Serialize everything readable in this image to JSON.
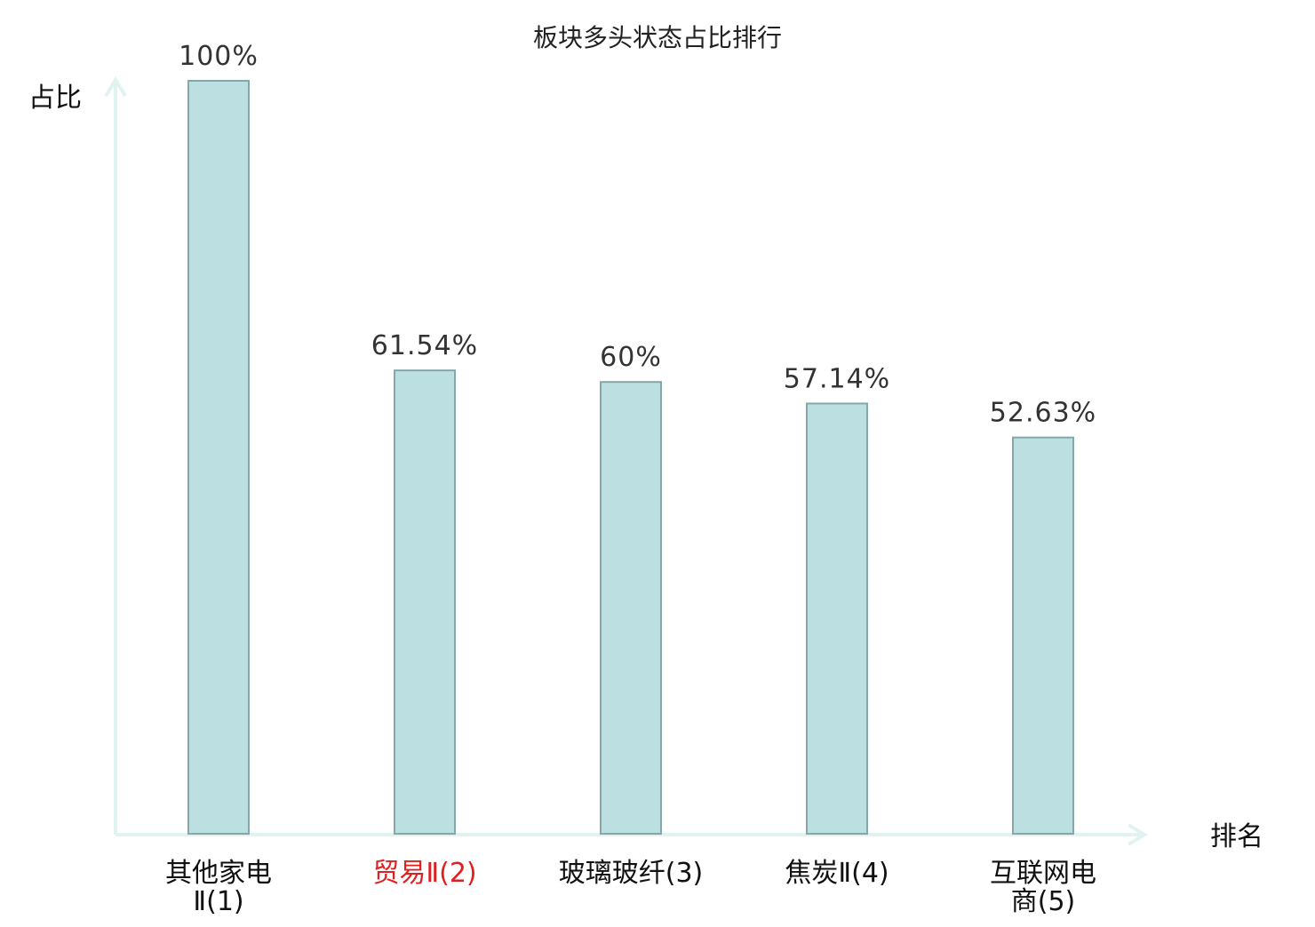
{
  "chart_data": {
    "type": "bar",
    "title": "板块多头状态占比排行",
    "xlabel": "排名",
    "ylabel": "占比",
    "ylim": [
      0,
      100
    ],
    "grid": false,
    "categories": [
      {
        "lines": [
          "其他家电",
          "Ⅱ(1)"
        ],
        "highlight": false
      },
      {
        "lines": [
          "贸易Ⅱ(2)"
        ],
        "highlight": true
      },
      {
        "lines": [
          "玻璃玻纤(3)"
        ],
        "highlight": false
      },
      {
        "lines": [
          "焦炭Ⅱ(4)"
        ],
        "highlight": false
      },
      {
        "lines": [
          "互联网电",
          "商(5)"
        ],
        "highlight": false
      }
    ],
    "values": [
      100,
      61.54,
      60,
      57.14,
      52.63
    ],
    "value_labels": [
      "100%",
      "61.54%",
      "60%",
      "57.14%",
      "52.63%"
    ],
    "colors": {
      "bar_fill": "#bce0e2",
      "bar_stroke": "#86a7a8",
      "axis": "#e0f3f0",
      "category_text": "#111111",
      "highlight_text": "#e02020"
    }
  }
}
